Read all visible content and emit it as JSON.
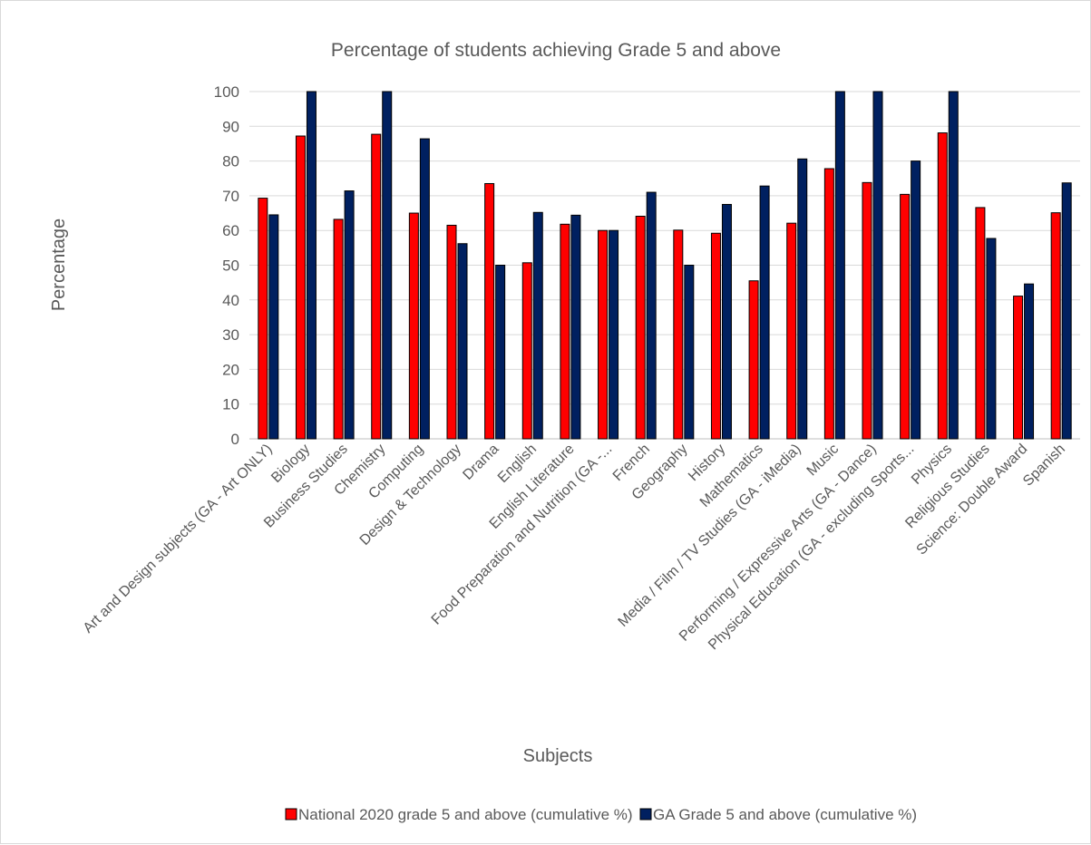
{
  "chart_data": {
    "type": "bar",
    "title": "Percentage of students achieving Grade 5 and above",
    "xlabel": "Subjects",
    "ylabel": "Percentage",
    "ylim": [
      0,
      100
    ],
    "yticks": [
      0,
      10,
      20,
      30,
      40,
      50,
      60,
      70,
      80,
      90,
      100
    ],
    "grid": true,
    "legend_position": "bottom",
    "categories": [
      "Art and Design subjects (GA - Art ONLY)",
      "Biology",
      "Business Studies",
      "Chemistry",
      "Computing",
      "Design & Technology",
      "Drama",
      "English",
      "English Literature",
      "Food Preparation and Nutrition (GA -...",
      "French",
      "Geography",
      "History",
      "Mathematics",
      "Media / Film / TV Studies (GA - iMedia)",
      "Music",
      "Performing / Expressive Arts (GA - Dance)",
      "Physical Education (GA - excluding Sports...",
      "Physics",
      "Religious Studies",
      "Science: Double Award",
      "Spanish"
    ],
    "series": [
      {
        "name": "National 2020 grade 5 and above (cumulative %)",
        "color": "#ff0000",
        "values": [
          69.3,
          87.2,
          63.2,
          87.7,
          65.0,
          61.5,
          73.5,
          50.7,
          61.8,
          60.0,
          64.1,
          60.1,
          59.2,
          45.5,
          62.1,
          77.8,
          73.8,
          70.4,
          88.1,
          66.6,
          41.1,
          65.1
        ]
      },
      {
        "name": "GA Grade 5 and above (cumulative %)",
        "color": "#002060",
        "values": [
          64.5,
          100,
          71.4,
          100,
          86.4,
          56.2,
          50.0,
          65.2,
          64.4,
          60.0,
          71.0,
          50.0,
          67.5,
          72.8,
          80.6,
          100,
          100,
          80.0,
          100,
          57.7,
          44.6,
          73.7
        ]
      }
    ]
  }
}
